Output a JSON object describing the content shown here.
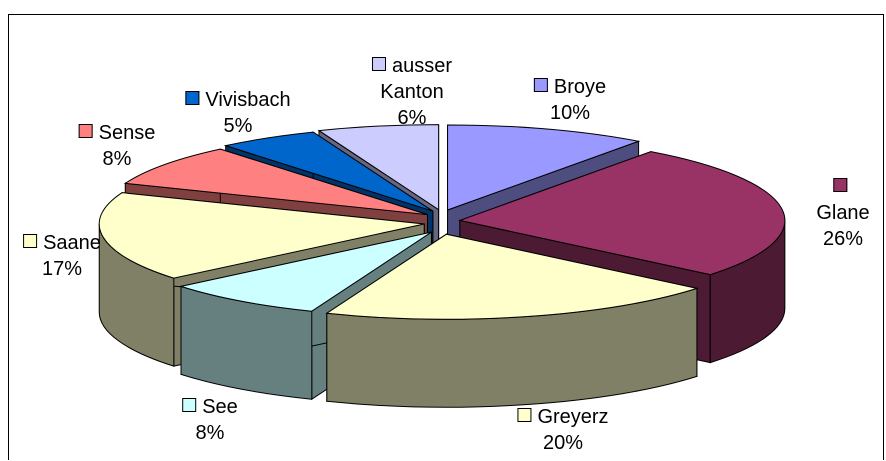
{
  "chart_data": {
    "type": "pie",
    "categories": [
      "Broye",
      "Glane",
      "Greyerz",
      "See",
      "Saane",
      "Sense",
      "Vivisbach",
      "ausser Kanton"
    ],
    "values": [
      10,
      26,
      20,
      8,
      17,
      8,
      5,
      6
    ],
    "value_labels": [
      "10%",
      "26%",
      "20%",
      "8%",
      "17%",
      "8%",
      "5%",
      "6%"
    ],
    "colors": [
      "#9999ff",
      "#993366",
      "#ffffcc",
      "#ccffff",
      "#ffffcc",
      "#ff8080",
      "#0066cc",
      "#ccccff"
    ]
  }
}
